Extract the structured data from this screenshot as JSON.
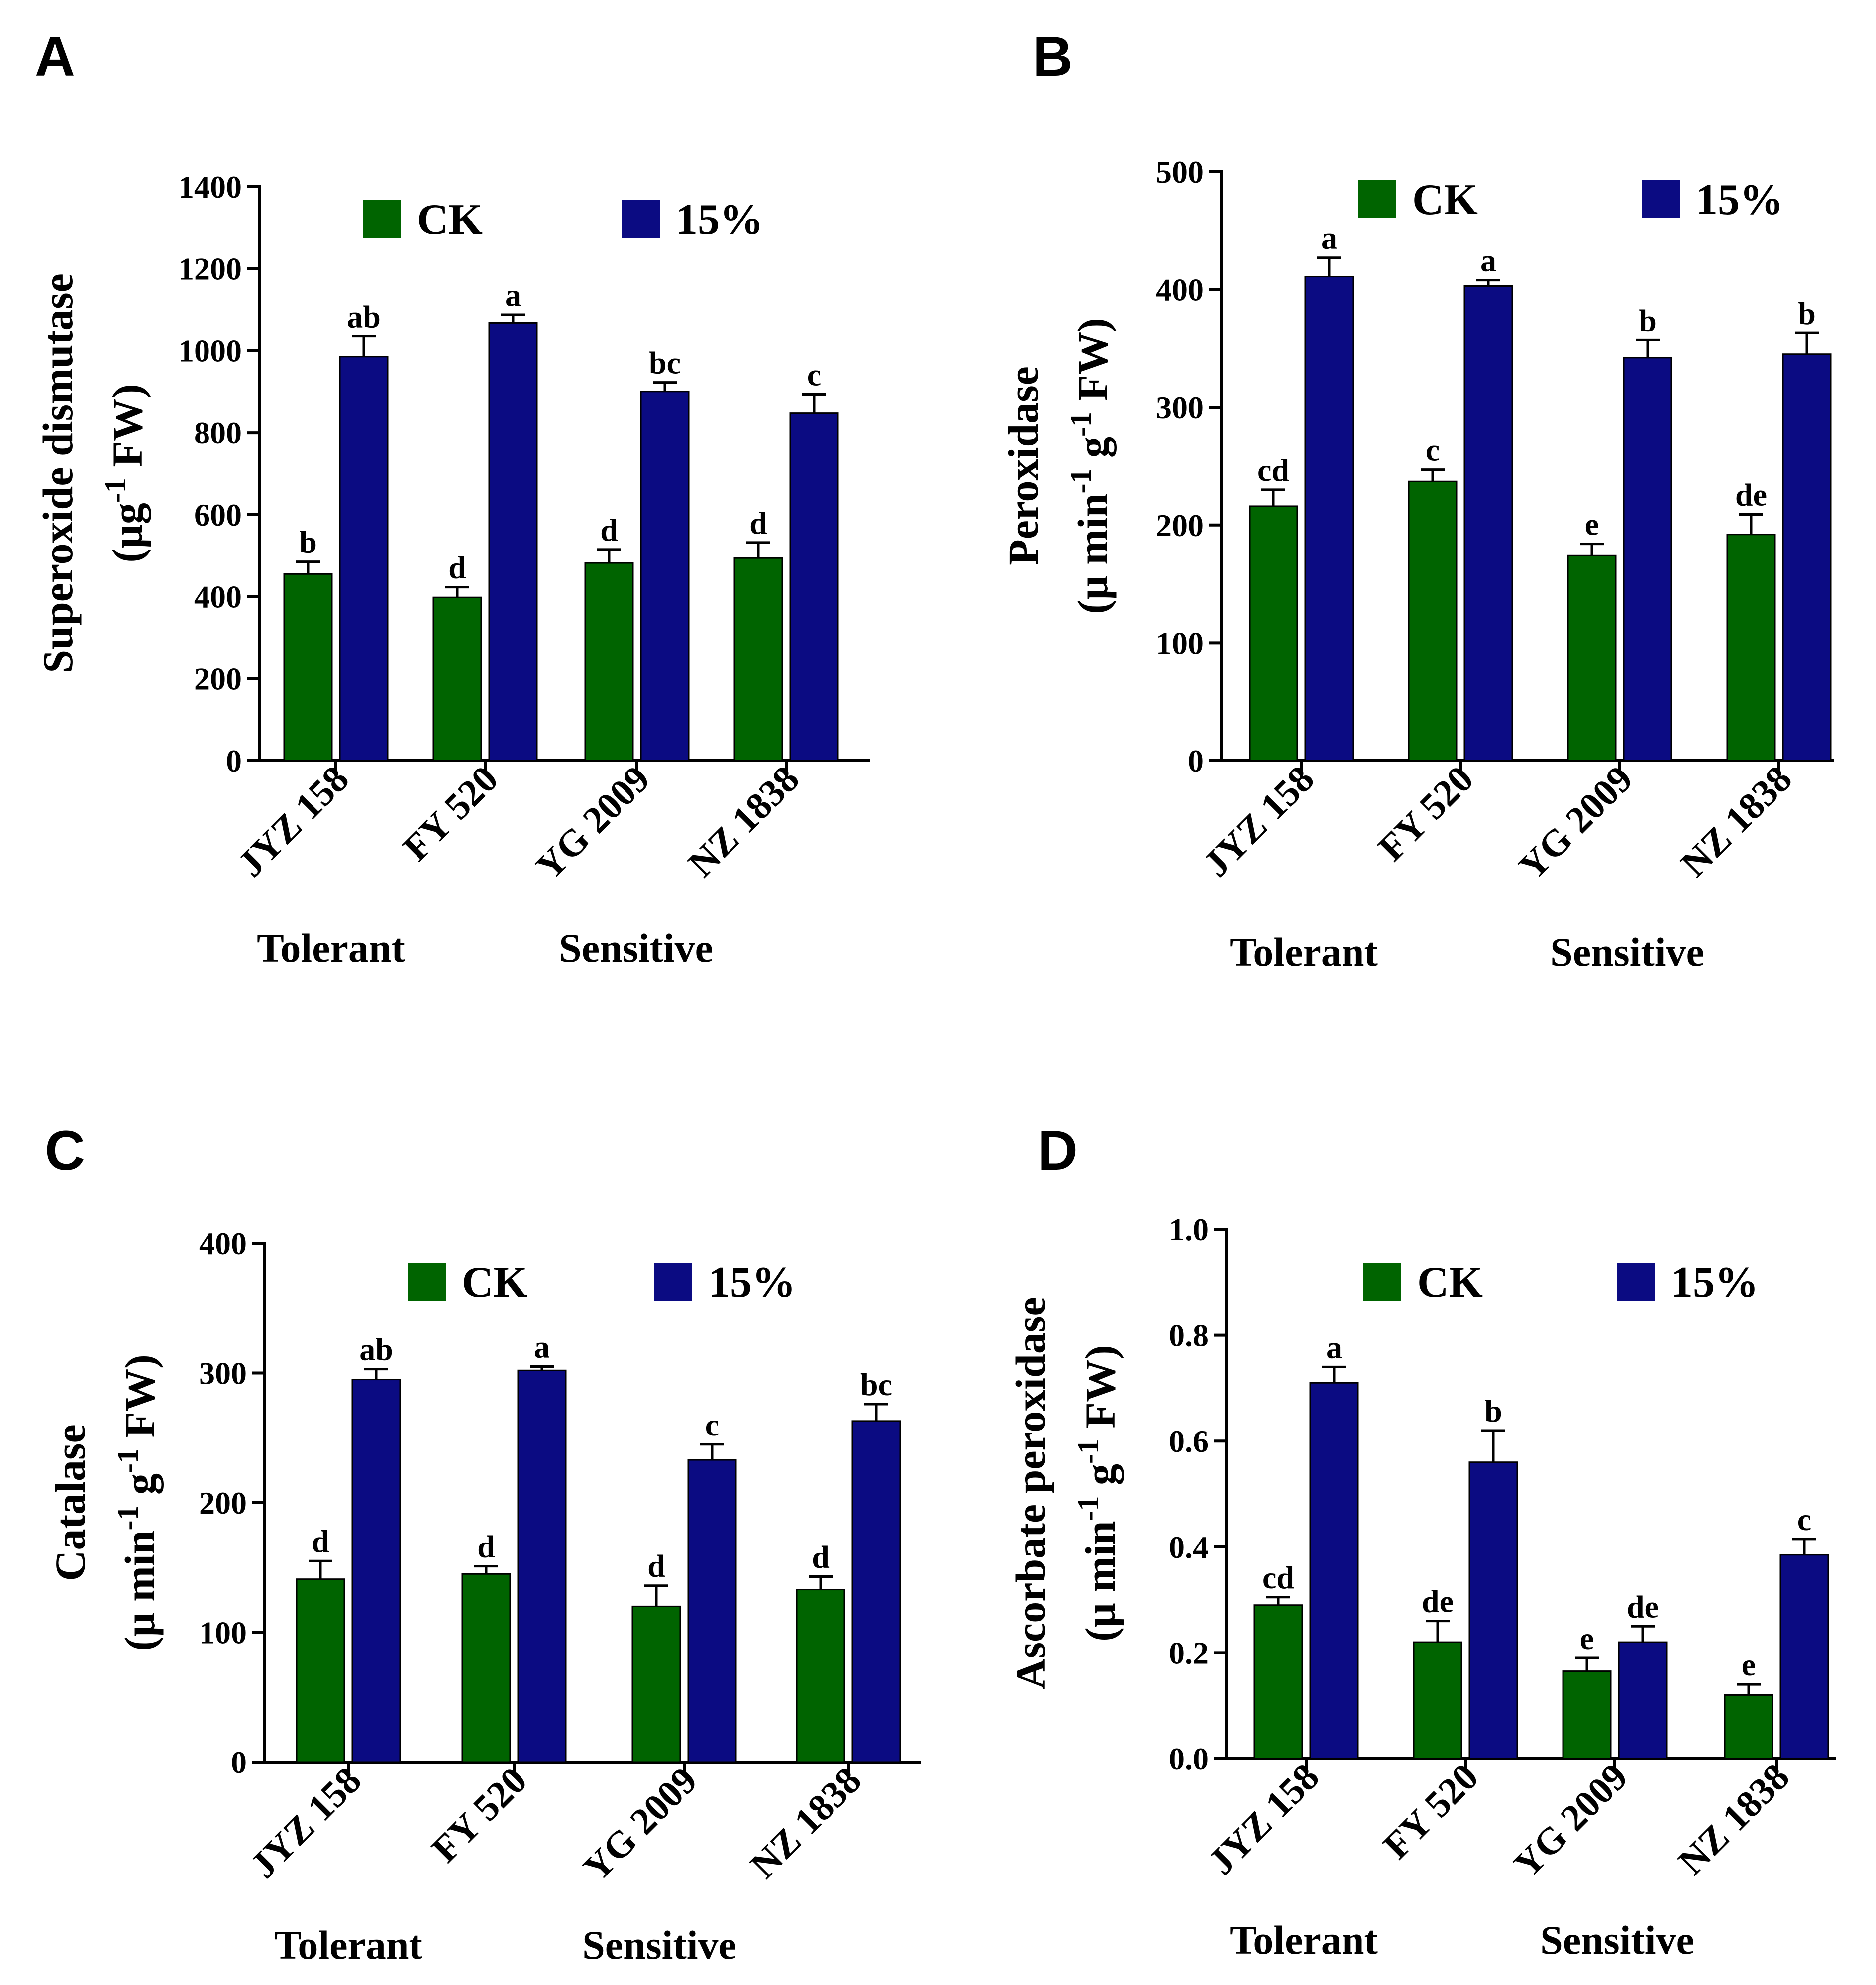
{
  "colors": {
    "ck": "#006400",
    "treat": "#0b0b82",
    "axis": "#000000"
  },
  "chart_data": [
    {
      "type": "bar",
      "panel": "A",
      "ylabel_line1": "Superoxide dismutase",
      "ylabel_line2": {
        "pre": "(μg",
        "sup": "-1",
        "post": " FW)"
      },
      "ylim": [
        0,
        1400
      ],
      "yticks": [
        "0",
        "200",
        "400",
        "600",
        "800",
        "1000",
        "1200",
        "1400"
      ],
      "categories": [
        "JYZ 158",
        "FY 520",
        "YG 2009",
        "NZ 1838"
      ],
      "groups": [
        "Tolerant",
        "Sensitive"
      ],
      "legend": [
        "CK",
        "15%"
      ],
      "series": [
        {
          "name": "CK",
          "values": [
            455,
            398,
            482,
            494
          ],
          "errors": [
            30,
            25,
            33,
            38
          ],
          "letters": [
            "b",
            "d",
            "d",
            "d"
          ]
        },
        {
          "name": "15%",
          "values": [
            985,
            1068,
            900,
            848
          ],
          "errors": [
            50,
            20,
            22,
            45
          ],
          "letters": [
            "ab",
            "a",
            "bc",
            "c"
          ]
        }
      ]
    },
    {
      "type": "bar",
      "panel": "B",
      "ylabel_line1": "Peroxidase",
      "ylabel_line2": {
        "pre": "(μ min",
        "sup": "-1",
        "mid": " g",
        "sup2": "-1",
        "post": " FW)"
      },
      "ylim": [
        0,
        500
      ],
      "yticks": [
        "0",
        "100",
        "200",
        "300",
        "400",
        "500"
      ],
      "categories": [
        "JYZ 158",
        "FY 520",
        "YG 2009",
        "NZ 1838"
      ],
      "groups": [
        "Tolerant",
        "Sensitive"
      ],
      "legend": [
        "CK",
        "15%"
      ],
      "series": [
        {
          "name": "CK",
          "values": [
            216,
            237,
            174,
            192
          ],
          "errors": [
            14,
            10,
            10,
            17
          ],
          "letters": [
            "cd",
            "c",
            "e",
            "de"
          ]
        },
        {
          "name": "15%",
          "values": [
            411,
            403,
            342,
            345
          ],
          "errors": [
            16,
            5,
            15,
            18
          ],
          "letters": [
            "a",
            "a",
            "b",
            "b"
          ]
        }
      ]
    },
    {
      "type": "bar",
      "panel": "C",
      "ylabel_line1": "Catalase",
      "ylabel_line2": {
        "pre": "(μ min",
        "sup": "-1",
        "mid": " g",
        "sup2": "-1",
        "post": " FW)"
      },
      "ylim": [
        0,
        400
      ],
      "yticks": [
        "0",
        "100",
        "200",
        "300",
        "400"
      ],
      "categories": [
        "JYZ 158",
        "FY 520",
        "YG 2009",
        "NZ 1838"
      ],
      "groups": [
        "Tolerant",
        "Sensitive"
      ],
      "legend": [
        "CK",
        "15%"
      ],
      "series": [
        {
          "name": "CK",
          "values": [
            141,
            145,
            120,
            133
          ],
          "errors": [
            14,
            6,
            16,
            10
          ],
          "letters": [
            "d",
            "d",
            "d",
            "d"
          ]
        },
        {
          "name": "15%",
          "values": [
            295,
            302,
            233,
            263
          ],
          "errors": [
            8,
            3,
            12,
            13
          ],
          "letters": [
            "ab",
            "a",
            "c",
            "bc"
          ]
        }
      ]
    },
    {
      "type": "bar",
      "panel": "D",
      "ylabel_line1": "Ascorbate peroxidase",
      "ylabel_line2": {
        "pre": "(μ min",
        "sup": "-1",
        "mid": " g",
        "sup2": "-1",
        "post": " FW)"
      },
      "ylim": [
        0,
        1.0
      ],
      "yticks": [
        "0.0",
        "0.2",
        "0.4",
        "0.6",
        "0.8",
        "1.0"
      ],
      "categories": [
        "JYZ 158",
        "FY 520",
        "YG 2009",
        "NZ 1838"
      ],
      "groups": [
        "Tolerant",
        "Sensitive"
      ],
      "legend": [
        "CK",
        "15%"
      ],
      "series": [
        {
          "name": "CK",
          "values": [
            0.29,
            0.22,
            0.165,
            0.12
          ],
          "errors": [
            0.015,
            0.04,
            0.025,
            0.02
          ],
          "letters": [
            "cd",
            "de",
            "e",
            "e"
          ]
        },
        {
          "name": "15%",
          "values": [
            0.71,
            0.56,
            0.22,
            0.385
          ],
          "errors": [
            0.03,
            0.06,
            0.03,
            0.03
          ],
          "letters": [
            "a",
            "b",
            "de",
            "c"
          ]
        }
      ]
    }
  ]
}
